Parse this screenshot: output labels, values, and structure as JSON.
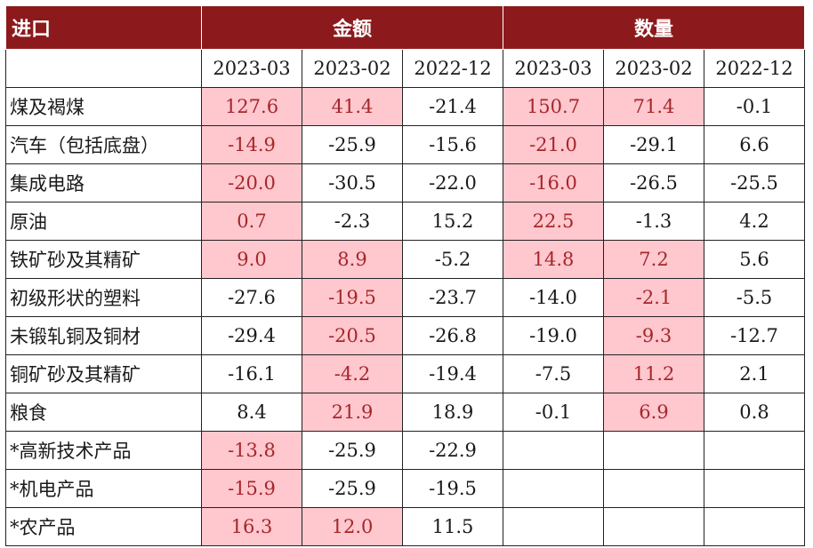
{
  "header": {
    "label": "进口",
    "groups": [
      "金额",
      "数量"
    ],
    "dates": [
      "2023-03",
      "2023-02",
      "2022-12",
      "2023-03",
      "2023-02",
      "2022-12"
    ]
  },
  "highlight_color": "#ffc7ce",
  "highlight_text_color": "#a5272a",
  "header_color": "#8c1a1d",
  "rows": [
    {
      "name": "煤及褐煤",
      "values": [
        "127.6",
        "41.4",
        "-21.4",
        "150.7",
        "71.4",
        "-0.1"
      ],
      "highlight": [
        true,
        true,
        false,
        true,
        true,
        false
      ]
    },
    {
      "name": "汽车（包括底盘）",
      "values": [
        "-14.9",
        "-25.9",
        "-15.6",
        "-21.0",
        "-29.1",
        "6.6"
      ],
      "highlight": [
        true,
        false,
        false,
        true,
        false,
        false
      ]
    },
    {
      "name": "集成电路",
      "values": [
        "-20.0",
        "-30.5",
        "-22.0",
        "-16.0",
        "-26.5",
        "-25.5"
      ],
      "highlight": [
        true,
        false,
        false,
        true,
        false,
        false
      ]
    },
    {
      "name": "原油",
      "values": [
        "0.7",
        "-2.3",
        "15.2",
        "22.5",
        "-1.3",
        "4.2"
      ],
      "highlight": [
        true,
        false,
        false,
        true,
        false,
        false
      ]
    },
    {
      "name": "铁矿砂及其精矿",
      "values": [
        "9.0",
        "8.9",
        "-5.2",
        "14.8",
        "7.2",
        "5.6"
      ],
      "highlight": [
        true,
        true,
        false,
        true,
        true,
        false
      ]
    },
    {
      "name": "初级形状的塑料",
      "values": [
        "-27.6",
        "-19.5",
        "-23.7",
        "-14.0",
        "-2.1",
        "-5.5"
      ],
      "highlight": [
        false,
        true,
        false,
        false,
        true,
        false
      ]
    },
    {
      "name": "未锻轧铜及铜材",
      "values": [
        "-29.4",
        "-20.5",
        "-26.8",
        "-19.0",
        "-9.3",
        "-12.7"
      ],
      "highlight": [
        false,
        true,
        false,
        false,
        true,
        false
      ]
    },
    {
      "name": "铜矿砂及其精矿",
      "values": [
        "-16.1",
        "-4.2",
        "-19.4",
        "-7.5",
        "11.2",
        "2.1"
      ],
      "highlight": [
        false,
        true,
        false,
        false,
        true,
        false
      ]
    },
    {
      "name": "粮食",
      "values": [
        "8.4",
        "21.9",
        "18.9",
        "-0.1",
        "6.9",
        "0.8"
      ],
      "highlight": [
        false,
        true,
        false,
        false,
        true,
        false
      ]
    },
    {
      "name": "*高新技术产品",
      "values": [
        "-13.8",
        "-25.9",
        "-22.9",
        "",
        "",
        ""
      ],
      "highlight": [
        true,
        false,
        false,
        false,
        false,
        false
      ]
    },
    {
      "name": "*机电产品",
      "values": [
        "-15.9",
        "-25.9",
        "-19.5",
        "",
        "",
        ""
      ],
      "highlight": [
        true,
        false,
        false,
        false,
        false,
        false
      ]
    },
    {
      "name": "*农产品",
      "values": [
        "16.3",
        "12.0",
        "11.5",
        "",
        "",
        ""
      ],
      "highlight": [
        true,
        true,
        false,
        false,
        false,
        false
      ]
    }
  ]
}
